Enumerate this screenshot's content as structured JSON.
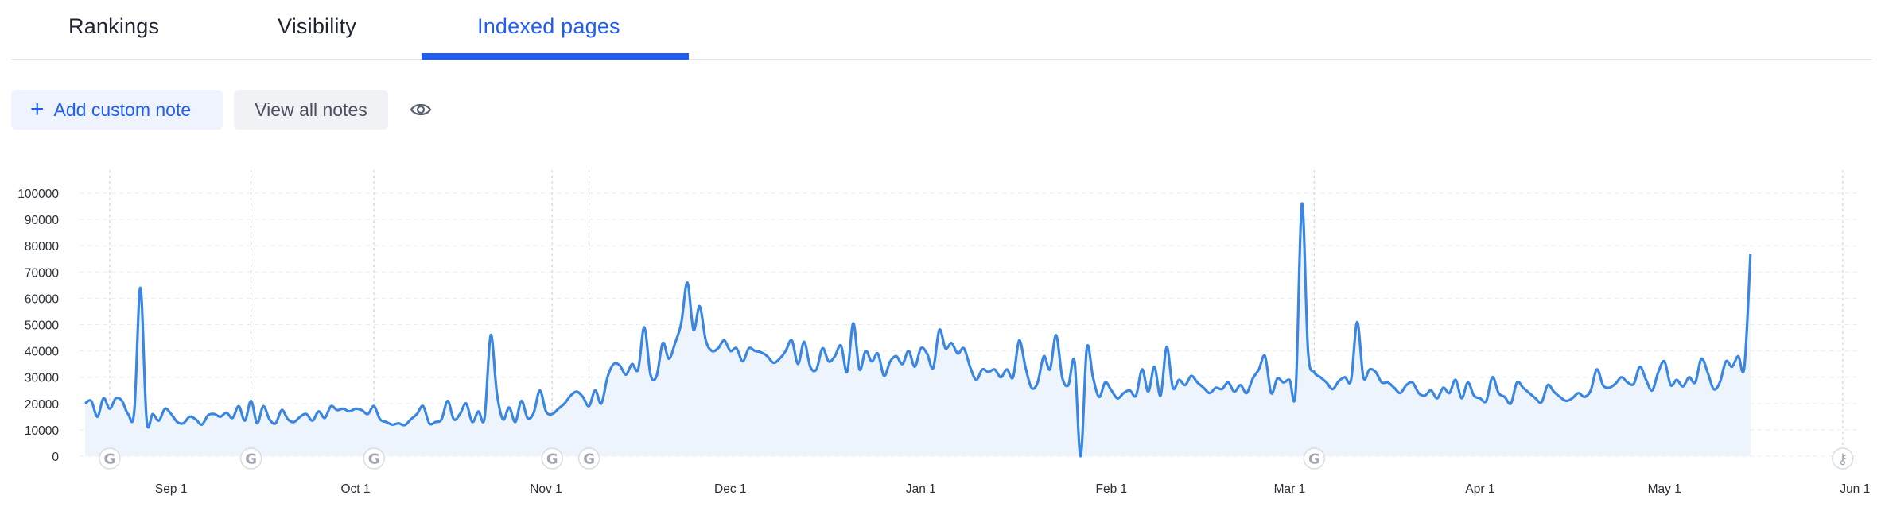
{
  "tabs": [
    {
      "label": "Rankings",
      "active": false
    },
    {
      "label": "Visibility",
      "active": false
    },
    {
      "label": "Indexed pages",
      "active": true
    }
  ],
  "toolbar": {
    "add_note_icon": "+",
    "add_note_label": "Add custom note",
    "view_notes_label": "View all notes",
    "visibility_icon": "eye-icon"
  },
  "colors": {
    "accent": "#1f5ef0",
    "line": "#3b86e0",
    "area": "#eef4fc",
    "marker": "#a0a6b0"
  },
  "chart_data": {
    "type": "area",
    "title": "",
    "xlabel": "",
    "ylabel": "",
    "ylim": [
      0,
      100000
    ],
    "yticks": [
      0,
      10000,
      20000,
      30000,
      40000,
      50000,
      60000,
      70000,
      80000,
      90000,
      100000
    ],
    "grid": true,
    "x_start": "Aug 17",
    "x_end": "Jun 1",
    "xticks": [
      {
        "label": "Sep 1",
        "day": 15
      },
      {
        "label": "Oct 1",
        "day": 45
      },
      {
        "label": "Nov 1",
        "day": 76
      },
      {
        "label": "Dec 1",
        "day": 106
      },
      {
        "label": "Jan 1",
        "day": 137
      },
      {
        "label": "Feb 1",
        "day": 168
      },
      {
        "label": "Mar 1",
        "day": 197
      },
      {
        "label": "Apr 1",
        "day": 228
      },
      {
        "label": "May 1",
        "day": 258
      },
      {
        "label": "Jun 1",
        "day": 289
      }
    ],
    "series": [
      {
        "values": [
          20000,
          21000,
          15000,
          22000,
          18000,
          22000,
          21000,
          16000,
          17000,
          64000,
          14000,
          16000,
          13500,
          18000,
          16000,
          13000,
          12500,
          15000,
          14000,
          12000,
          15500,
          16000,
          15000,
          16500,
          14500,
          19000,
          13500,
          21000,
          12500,
          19000,
          14000,
          12500,
          17500,
          14000,
          13000,
          15000,
          16000,
          13500,
          17000,
          14500,
          19000,
          17500,
          18000,
          17000,
          18000,
          17500,
          16000,
          19000,
          14000,
          13000,
          12000,
          12500,
          11800,
          14000,
          16000,
          19000,
          12500,
          13000,
          14000,
          21000,
          14000,
          16000,
          20000,
          13000,
          17000,
          14500,
          46000,
          24000,
          14000,
          18500,
          13000,
          21000,
          14500,
          16500,
          25000,
          17000,
          16000,
          18000,
          20000,
          23000,
          24500,
          22500,
          19000,
          25000,
          20000,
          30000,
          35000,
          34500,
          31000,
          35000,
          33000,
          49000,
          31000,
          30500,
          43000,
          37000,
          43000,
          50500,
          66000,
          48000,
          57000,
          44000,
          40000,
          41000,
          44000,
          40000,
          41000,
          36000,
          41000,
          40000,
          39500,
          38000,
          35500,
          37000,
          40000,
          44000,
          35000,
          43500,
          34000,
          33000,
          41000,
          36000,
          38000,
          42000,
          32000,
          50500,
          33000,
          40000,
          36000,
          39000,
          30500,
          36000,
          38000,
          35000,
          40000,
          34000,
          41000,
          39000,
          33500,
          48000,
          41000,
          43000,
          39000,
          41000,
          34000,
          29000,
          33000,
          32000,
          33000,
          30000,
          33000,
          30000,
          44000,
          34000,
          26000,
          28000,
          38000,
          33000,
          46000,
          30000,
          27000,
          36000,
          0,
          41000,
          30000,
          22500,
          28000,
          25000,
          22000,
          24000,
          25000,
          23000,
          33000,
          24500,
          34000,
          23000,
          41500,
          26000,
          29000,
          27000,
          30500,
          28000,
          26000,
          24000,
          26000,
          25500,
          28000,
          24500,
          27000,
          24000,
          29500,
          33000,
          38000,
          24000,
          29500,
          28000,
          29000,
          25000,
          96000,
          40000,
          32000,
          30000,
          28000,
          25500,
          28500,
          30000,
          29000,
          51000,
          30000,
          33000,
          32000,
          28000,
          28000,
          26000,
          24000,
          27000,
          28000,
          24000,
          23000,
          25000,
          22000,
          26000,
          24000,
          29000,
          22000,
          28000,
          23000,
          22000,
          21000,
          30000,
          24000,
          22500,
          20000,
          28000,
          26000,
          24000,
          22000,
          20500,
          27000,
          24500,
          22500,
          21000,
          22000,
          24000,
          22500,
          25000,
          33000,
          27000,
          26000,
          27500,
          30000,
          28000,
          27500,
          34000,
          29000,
          25000,
          32000,
          36000,
          27000,
          29000,
          26500,
          30000,
          28000,
          37000,
          32000,
          25500,
          28000,
          36000,
          34000,
          38000,
          34000,
          77000
        ],
        "spacing_days": 1
      }
    ],
    "markers": [
      {
        "icon": "google-icon",
        "glyph": "G",
        "day": 5
      },
      {
        "icon": "google-icon",
        "glyph": "G",
        "day": 28
      },
      {
        "icon": "google-icon",
        "glyph": "G",
        "day": 48
      },
      {
        "icon": "google-icon",
        "glyph": "G",
        "day": 77
      },
      {
        "icon": "google-icon",
        "glyph": "G",
        "day": 83
      },
      {
        "icon": "google-icon",
        "glyph": "G",
        "day": 201
      },
      {
        "icon": "key-icon",
        "glyph": "⚷",
        "day": 287
      }
    ]
  }
}
